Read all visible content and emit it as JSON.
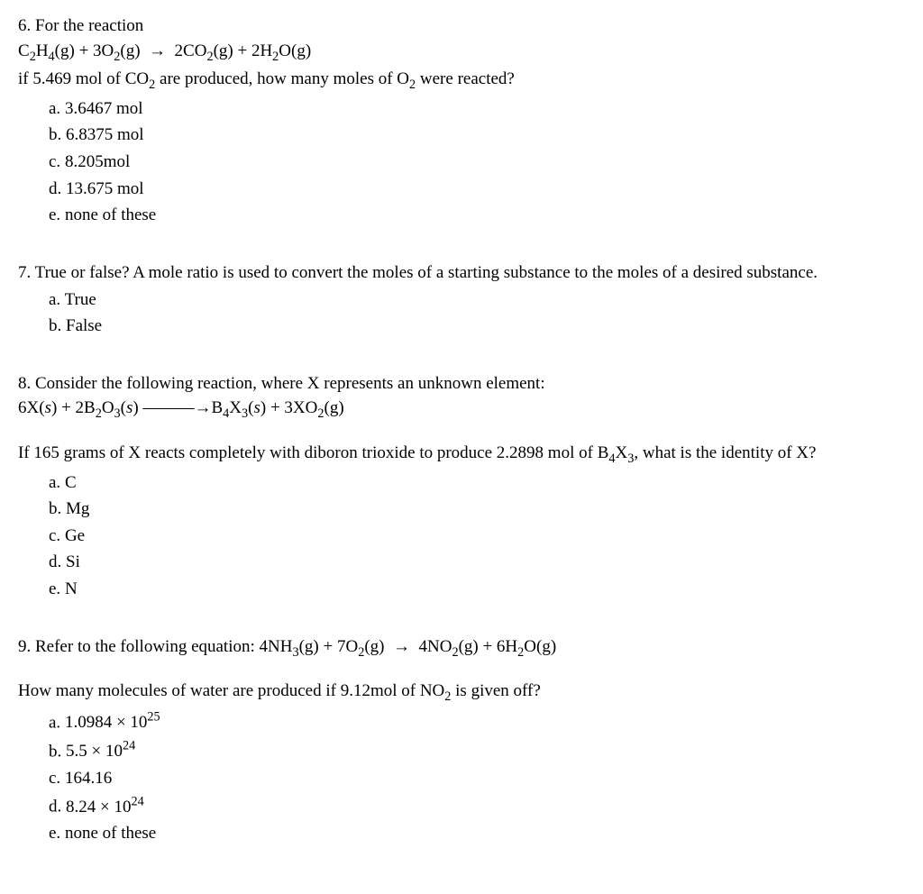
{
  "q6": {
    "num": "6.",
    "lead": "For the reaction",
    "eq_html": "C<span class='sub'>2</span>H<span class='sub'>4</span>(g) + 3O<span class='sub'>2</span>(g) &nbsp;→&nbsp; 2CO<span class='sub'>2</span>(g) + 2H<span class='sub'>2</span>O(g)",
    "prompt_html": "if 5.469 mol of CO<span class='sub'>2</span> are produced, how many moles of O<span class='sub'>2</span> were reacted?",
    "choices": [
      {
        "letter": "a.",
        "text": "3.6467 mol"
      },
      {
        "letter": "b.",
        "text": "6.8375 mol"
      },
      {
        "letter": "c.",
        "text": "8.205mol"
      },
      {
        "letter": "d.",
        "text": "13.675 mol"
      },
      {
        "letter": "e.",
        "text": "none of these"
      }
    ]
  },
  "q7": {
    "num": "7.",
    "prompt": "True or false? A mole ratio is used to convert the moles of a starting substance to the moles of a desired substance.",
    "choices": [
      {
        "letter": "a.",
        "text": "True"
      },
      {
        "letter": "b.",
        "text": "False"
      }
    ]
  },
  "q8": {
    "num": "8.",
    "lead": "Consider the following reaction, where X represents an unknown element:",
    "eq_html": "6X(<i>s</i>) + 2B<span class='sub'>2</span>O<span class='sub'>3</span>(<i>s</i>) ———→B<span class='sub'>4</span>X<span class='sub'>3</span>(<i>s</i>) + 3XO<span class='sub'>2</span>(g)",
    "prompt_html": "If 165 grams of X reacts completely with diboron trioxide to produce 2.2898 mol of B<span class='sub'>4</span>X<span class='sub'>3</span>, what is the identity of X?",
    "choices": [
      {
        "letter": "a.",
        "text": "C"
      },
      {
        "letter": "b.",
        "text": "Mg"
      },
      {
        "letter": "c.",
        "text": "Ge"
      },
      {
        "letter": "d.",
        "text": "Si"
      },
      {
        "letter": "e.",
        "text": "N"
      }
    ]
  },
  "q9": {
    "num": "9.",
    "lead": "Refer to the following equation:",
    "eq_html": "4NH<span class='sub'>3</span>(g) + 7O<span class='sub'>2</span>(g) &nbsp;→&nbsp; 4NO<span class='sub'>2</span>(g) + 6H<span class='sub'>2</span>O(g)",
    "prompt_html": "How many molecules of water are produced if 9.12mol of NO<span class='sub'>2</span> is given off?",
    "choices": [
      {
        "letter": "a.",
        "text_html": "1.0984 × 10<span class='sup'>25</span>"
      },
      {
        "letter": "b.",
        "text_html": "5.5 × 10<span class='sup'>24</span>"
      },
      {
        "letter": "c.",
        "text": "164.16"
      },
      {
        "letter": "d.",
        "text_html": "8.24 × 10<span class='sup'>24</span>"
      },
      {
        "letter": "e.",
        "text": "none of these"
      }
    ]
  }
}
